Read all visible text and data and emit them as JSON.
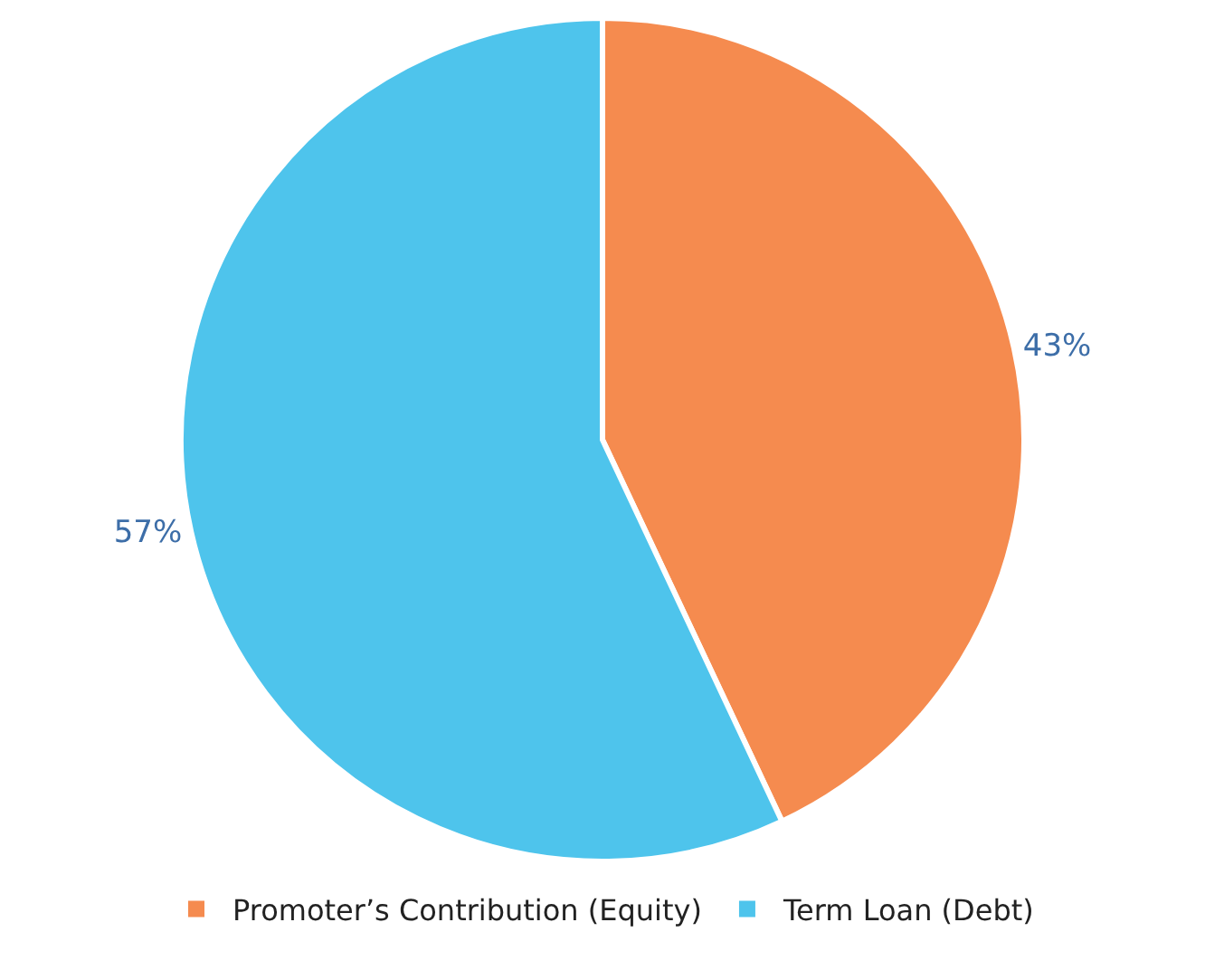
{
  "chart_data": {
    "type": "pie",
    "categories": [
      "Promoter’s Contribution (Equity)",
      "Term Loan (Debt)"
    ],
    "values": [
      43,
      57
    ],
    "colors": [
      "#f58b4f",
      "#4ec4ec"
    ],
    "value_labels": [
      "43%",
      "57%"
    ],
    "legend": "bottom"
  }
}
